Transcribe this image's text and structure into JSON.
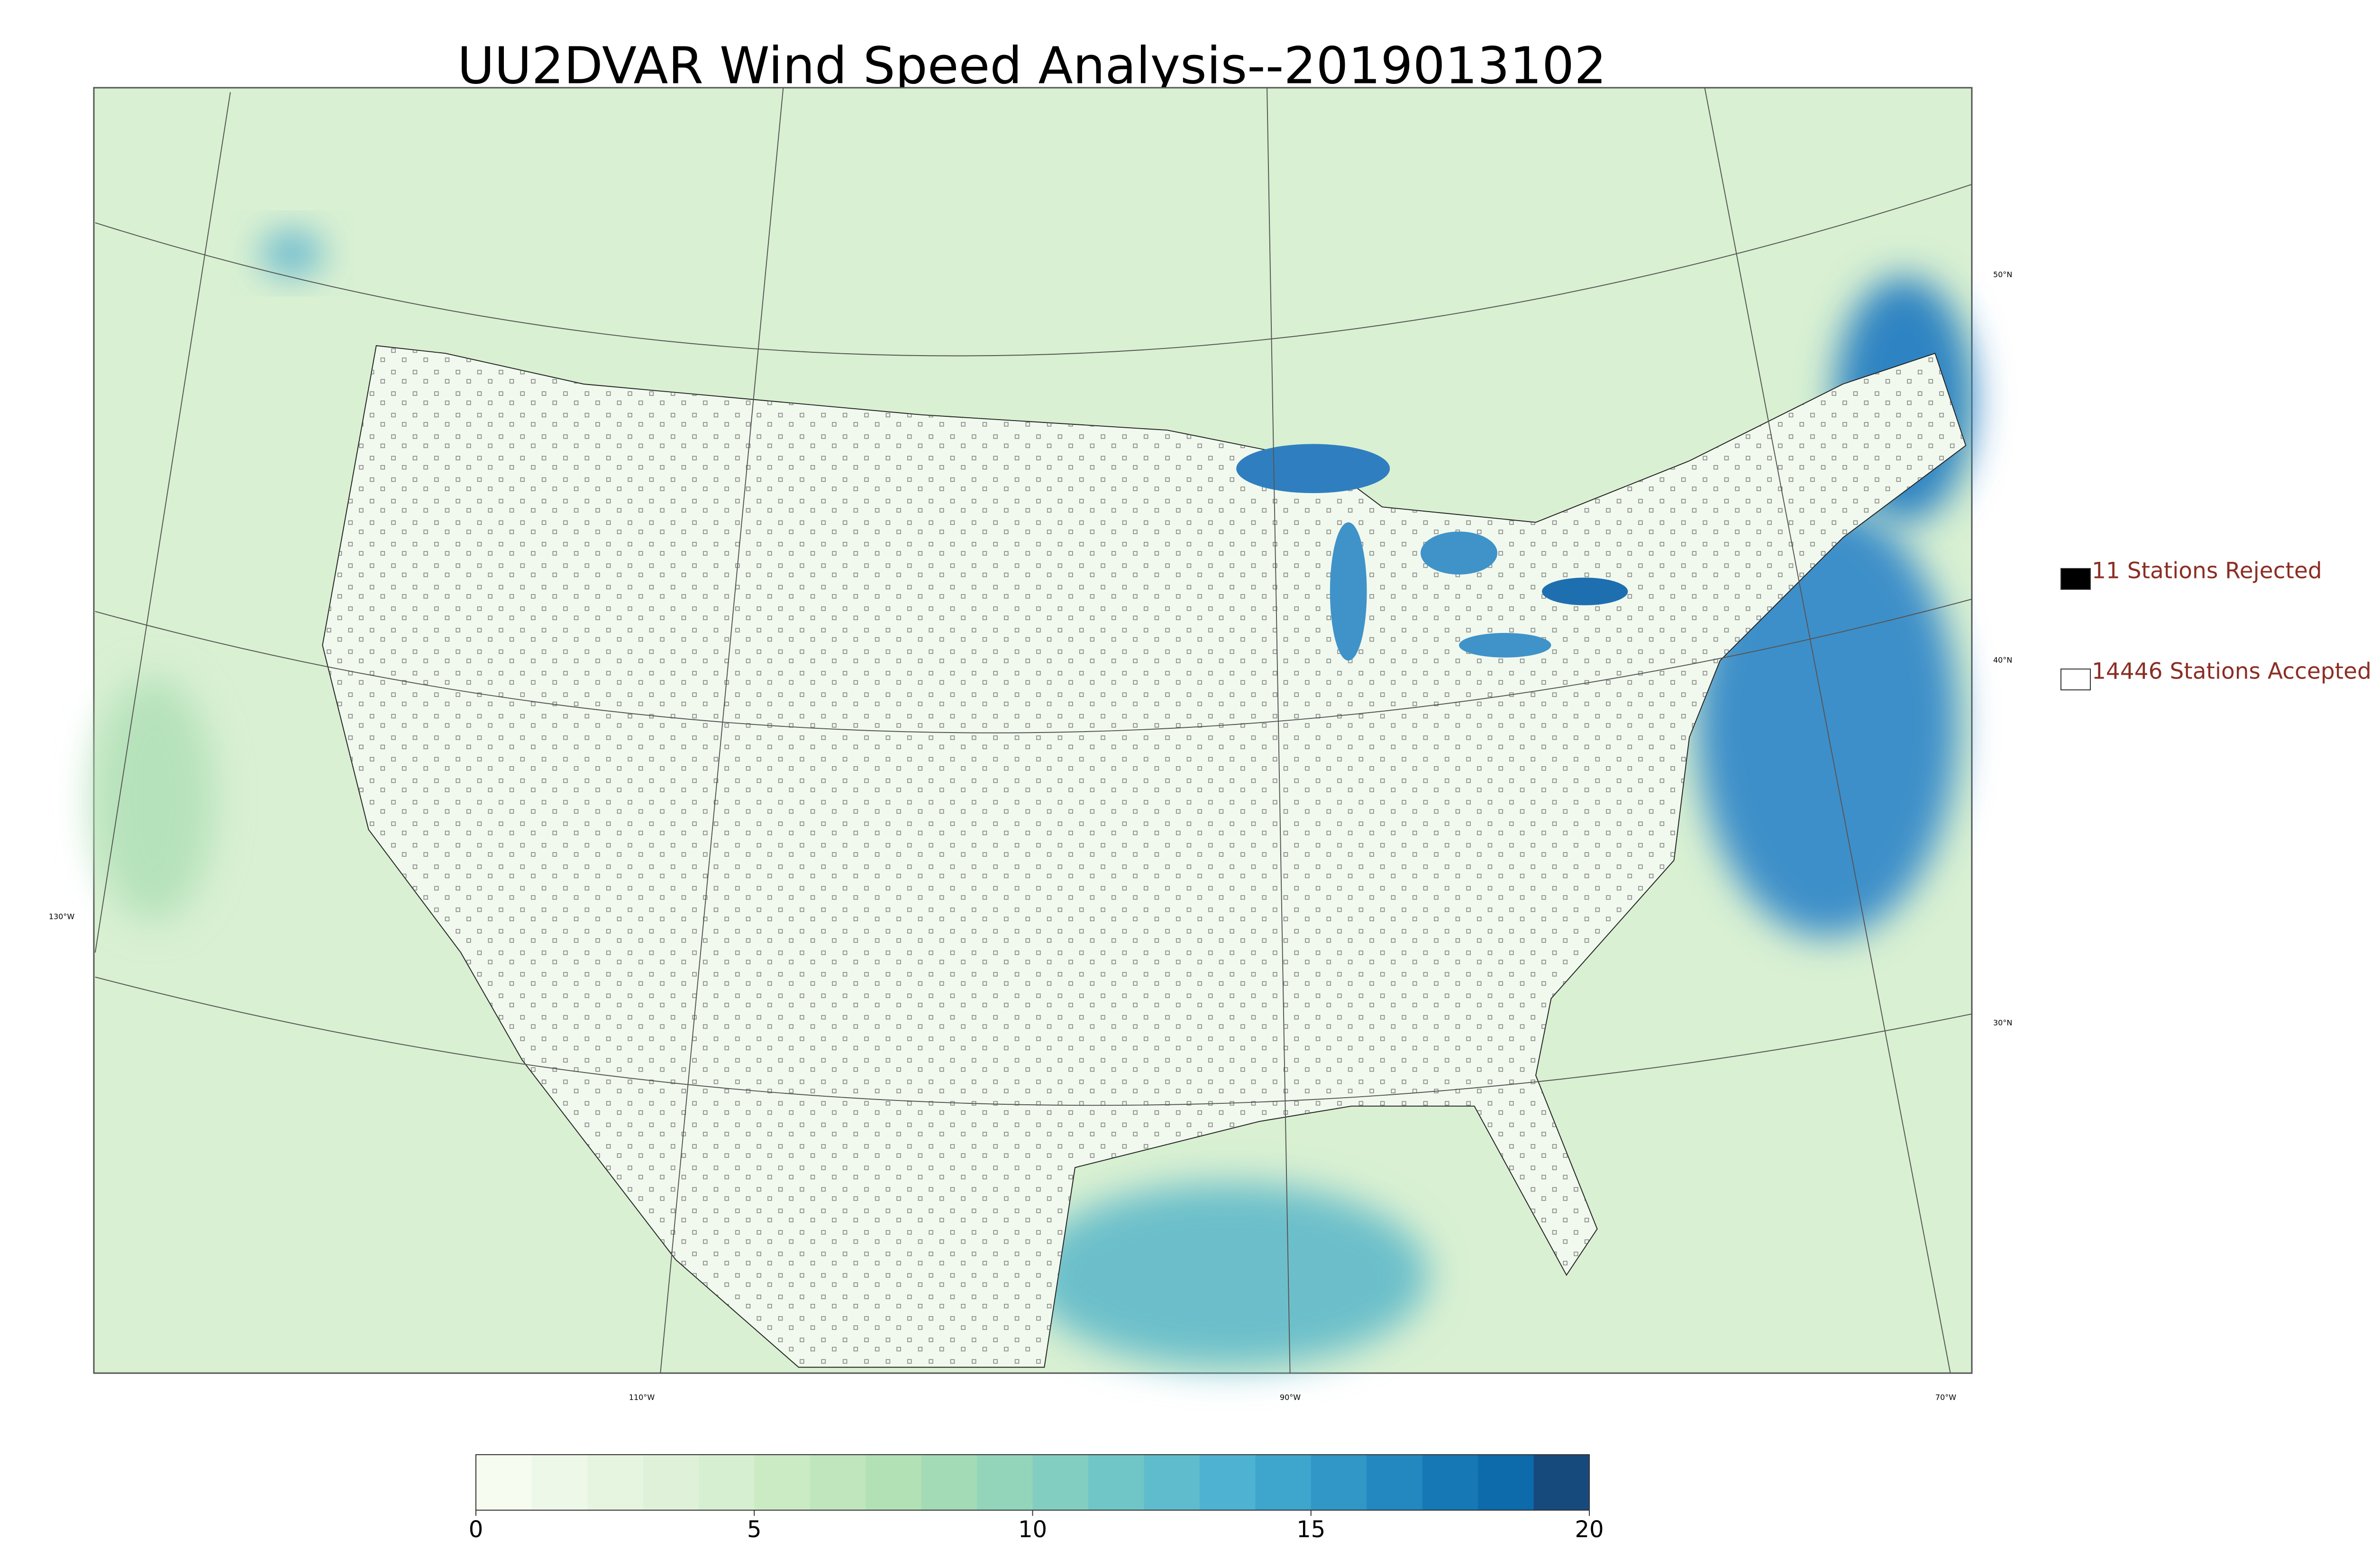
{
  "title": "UU2DVAR Wind Speed Analysis--2019013102",
  "legend": [
    {
      "label": "11 Stations Rejected",
      "color": "#000000"
    },
    {
      "label": "14446 Stations Accepted",
      "color": "#ffffff"
    }
  ],
  "graticule_labels": {
    "latitude": [
      "50°N",
      "40°N",
      "30°N"
    ],
    "longitude": [
      "130°W",
      "110°W",
      "90°W",
      "70°W"
    ]
  },
  "colorbar": {
    "lim": [
      0,
      20
    ],
    "ticks": [
      0,
      5,
      10,
      15,
      20
    ],
    "colors": [
      "#f7fcf0",
      "#eef8e8",
      "#e6f5e0",
      "#dff2d9",
      "#d6efd0",
      "#cbebc5",
      "#bfe6bd",
      "#b2e1b6",
      "#a3dbb7",
      "#93d5bb",
      "#82cec1",
      "#70c6c7",
      "#5fbccc",
      "#4eb2d3",
      "#3ea5cd",
      "#3097c6",
      "#2388bf",
      "#1679b5",
      "#0d6aab",
      "#174a7c"
    ]
  }
}
